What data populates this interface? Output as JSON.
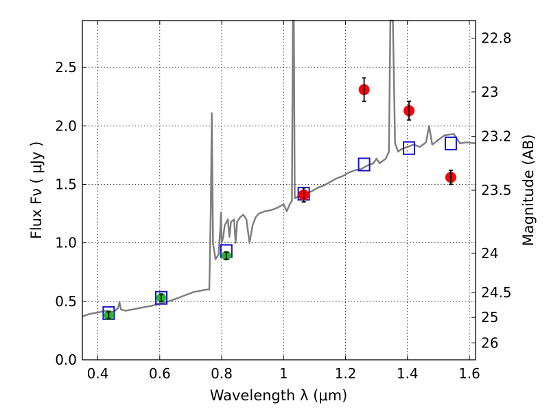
{
  "chart_data": {
    "type": "scatter",
    "xlabel": "Wavelength  λ (μm)",
    "ylabel": "Flux  Fν  ( μJy )",
    "y2label": "Magnitude (AB)",
    "xlim": [
      0.35,
      1.62
    ],
    "ylim": [
      0.0,
      2.9
    ],
    "grid": true,
    "x_ticks": [
      {
        "value": 0.4,
        "label": "0.4"
      },
      {
        "value": 0.6,
        "label": "0.6"
      },
      {
        "value": 0.8,
        "label": "0.8"
      },
      {
        "value": 1.0,
        "label": "1"
      },
      {
        "value": 1.2,
        "label": "1.2"
      },
      {
        "value": 1.4,
        "label": "1.4"
      },
      {
        "value": 1.6,
        "label": "1.6"
      }
    ],
    "y_ticks": [
      {
        "value": 0.0,
        "label": "0.0"
      },
      {
        "value": 0.5,
        "label": "0.5"
      },
      {
        "value": 1.0,
        "label": "1.0"
      },
      {
        "value": 1.5,
        "label": "1.5"
      },
      {
        "value": 2.0,
        "label": "2.0"
      },
      {
        "value": 2.5,
        "label": "2.5"
      }
    ],
    "y2_ticks": [
      {
        "label": "22.8",
        "flux": 2.75
      },
      {
        "label": "23",
        "flux": 2.29
      },
      {
        "label": "23.2",
        "flux": 1.91
      },
      {
        "label": "23.5",
        "flux": 1.45
      },
      {
        "label": "24",
        "flux": 0.91
      },
      {
        "label": "24.5",
        "flux": 0.575
      },
      {
        "label": "25",
        "flux": 0.363
      },
      {
        "label": "26",
        "flux": 0.145
      }
    ],
    "colors": {
      "spectrum": "#7f7f7f",
      "model_box": "#1010cc",
      "observed_optical": "#22bb22",
      "observed_nir": "#ff0000",
      "error_bar": "#000000"
    },
    "series": [
      {
        "kind": "line",
        "values": [
          [
            0.35,
            0.37
          ],
          [
            0.37,
            0.39
          ],
          [
            0.39,
            0.4
          ],
          [
            0.41,
            0.41
          ],
          [
            0.43,
            0.42
          ],
          [
            0.45,
            0.41
          ],
          [
            0.465,
            0.44
          ],
          [
            0.47,
            0.49
          ],
          [
            0.475,
            0.43
          ],
          [
            0.49,
            0.42
          ],
          [
            0.51,
            0.43
          ],
          [
            0.53,
            0.44
          ],
          [
            0.55,
            0.45
          ],
          [
            0.57,
            0.46
          ],
          [
            0.59,
            0.47
          ],
          [
            0.61,
            0.49
          ],
          [
            0.63,
            0.5
          ],
          [
            0.65,
            0.52
          ],
          [
            0.67,
            0.54
          ],
          [
            0.69,
            0.56
          ],
          [
            0.71,
            0.58
          ],
          [
            0.73,
            0.59
          ],
          [
            0.75,
            0.6
          ],
          [
            0.76,
            0.6
          ],
          [
            0.765,
            1.3
          ],
          [
            0.768,
            2.11
          ],
          [
            0.772,
            1.0
          ],
          [
            0.78,
            0.86
          ],
          [
            0.79,
            0.9
          ],
          [
            0.795,
            1.1
          ],
          [
            0.798,
            1.26
          ],
          [
            0.8,
            1.0
          ],
          [
            0.805,
            1.05
          ],
          [
            0.81,
            1.15
          ],
          [
            0.82,
            1.2
          ],
          [
            0.825,
            1.05
          ],
          [
            0.83,
            1.18
          ],
          [
            0.84,
            1.2
          ],
          [
            0.845,
            1.0
          ],
          [
            0.85,
            1.18
          ],
          [
            0.86,
            1.22
          ],
          [
            0.87,
            1.24
          ],
          [
            0.88,
            1.2
          ],
          [
            0.89,
            1.0
          ],
          [
            0.9,
            1.15
          ],
          [
            0.91,
            1.22
          ],
          [
            0.92,
            1.25
          ],
          [
            0.94,
            1.27
          ],
          [
            0.96,
            1.28
          ],
          [
            0.98,
            1.3
          ],
          [
            1.0,
            1.33
          ],
          [
            1.01,
            1.27
          ],
          [
            1.02,
            1.33
          ],
          [
            1.027,
            1.36
          ],
          [
            1.03,
            2.95
          ],
          [
            1.033,
            2.95
          ],
          [
            1.036,
            1.38
          ],
          [
            1.05,
            1.4
          ],
          [
            1.07,
            1.42
          ],
          [
            1.09,
            1.44
          ],
          [
            1.11,
            1.47
          ],
          [
            1.13,
            1.49
          ],
          [
            1.15,
            1.52
          ],
          [
            1.17,
            1.55
          ],
          [
            1.19,
            1.57
          ],
          [
            1.21,
            1.6
          ],
          [
            1.23,
            1.62
          ],
          [
            1.25,
            1.63
          ],
          [
            1.27,
            1.66
          ],
          [
            1.29,
            1.68
          ],
          [
            1.3,
            1.72
          ],
          [
            1.31,
            1.68
          ],
          [
            1.33,
            1.72
          ],
          [
            1.34,
            1.78
          ],
          [
            1.345,
            2.95
          ],
          [
            1.353,
            2.95
          ],
          [
            1.36,
            1.85
          ],
          [
            1.37,
            1.78
          ],
          [
            1.38,
            1.8
          ],
          [
            1.4,
            1.82
          ],
          [
            1.42,
            1.84
          ],
          [
            1.44,
            1.82
          ],
          [
            1.46,
            1.86
          ],
          [
            1.47,
            2.0
          ],
          [
            1.48,
            1.84
          ],
          [
            1.5,
            1.88
          ],
          [
            1.52,
            1.92
          ],
          [
            1.55,
            1.93
          ],
          [
            1.57,
            1.85
          ],
          [
            1.59,
            1.86
          ],
          [
            1.62,
            1.85
          ]
        ]
      },
      {
        "kind": "model-boxes",
        "values": [
          [
            0.435,
            0.4
          ],
          [
            0.605,
            0.53
          ],
          [
            0.815,
            0.93
          ],
          [
            1.065,
            1.42
          ],
          [
            1.26,
            1.67
          ],
          [
            1.405,
            1.81
          ],
          [
            1.54,
            1.85
          ]
        ]
      },
      {
        "kind": "observed-optical",
        "values": [
          {
            "x": 0.435,
            "y": 0.38,
            "err": 0.03
          },
          {
            "x": 0.605,
            "y": 0.53,
            "err": 0.03
          },
          {
            "x": 0.815,
            "y": 0.89,
            "err": 0.03
          }
        ]
      },
      {
        "kind": "observed-nir",
        "values": [
          {
            "x": 1.065,
            "y": 1.41,
            "err": 0.06
          },
          {
            "x": 1.26,
            "y": 2.31,
            "err": 0.1
          },
          {
            "x": 1.405,
            "y": 2.13,
            "err": 0.08
          },
          {
            "x": 1.54,
            "y": 1.56,
            "err": 0.06
          }
        ]
      }
    ]
  }
}
